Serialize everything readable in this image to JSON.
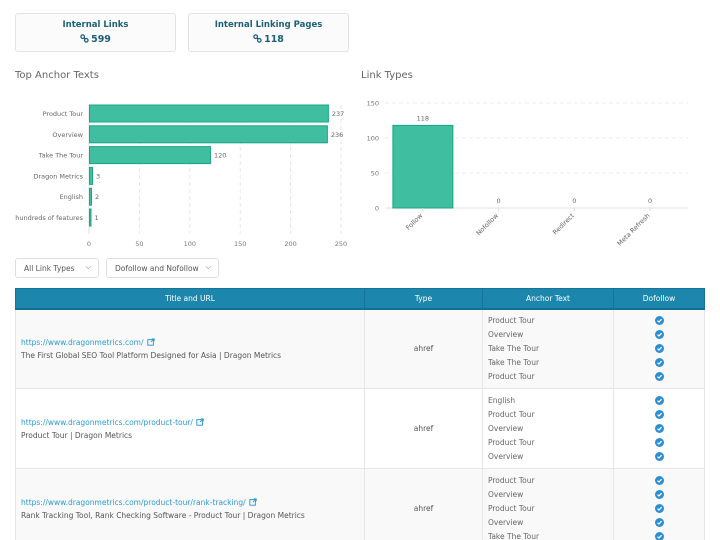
{
  "stats": [
    {
      "label": "Internal Links",
      "value": "599",
      "icon": "link-icon"
    },
    {
      "label": "Internal Linking Pages",
      "value": "118",
      "icon": "link-icon"
    }
  ],
  "colors": {
    "bar": "#3fbf9f",
    "bar_border": "#17a786",
    "header": "#1d86ac",
    "link": "#2d9ad6",
    "check": "#2c8fd6"
  },
  "chart_data": [
    {
      "type": "bar",
      "orientation": "horizontal",
      "title": "Top Anchor Texts",
      "categories": [
        "Product Tour",
        "Overview",
        "Take The Tour",
        "Dragon Metrics",
        "English",
        "hundreds of features"
      ],
      "values": [
        237,
        236,
        120,
        3,
        2,
        1
      ],
      "xlim": [
        0,
        250
      ],
      "xticks": [
        0,
        50,
        100,
        150,
        200,
        250
      ],
      "grid": true,
      "data_labels": true
    },
    {
      "type": "bar",
      "orientation": "vertical",
      "title": "Link Types",
      "categories": [
        "Follow",
        "Nofollow",
        "Redirect",
        "Meta Refresh"
      ],
      "values": [
        118,
        0,
        0,
        0
      ],
      "ylim": [
        0,
        150
      ],
      "yticks": [
        0,
        50,
        100,
        150
      ],
      "grid": true,
      "data_labels": true
    }
  ],
  "filters": {
    "link_type": {
      "selected": "All Link Types"
    },
    "follow": {
      "selected": "Dofollow and Nofollow"
    }
  },
  "table": {
    "headers": [
      "Title and URL",
      "Type",
      "Anchor Text",
      "Dofollow"
    ],
    "rows": [
      {
        "url": "https://www.dragonmetrics.com/",
        "title": "The First Global SEO Tool Platform Designed for Asia | Dragon Metrics",
        "type": "ahref",
        "anchors": [
          "Product Tour",
          "Overview",
          "Take The Tour",
          "Take The Tour",
          "Product Tour"
        ],
        "dofollow": [
          true,
          true,
          true,
          true,
          true
        ]
      },
      {
        "url": "https://www.dragonmetrics.com/product-tour/",
        "title": "Product Tour | Dragon Metrics",
        "type": "ahref",
        "anchors": [
          "English",
          "Product Tour",
          "Overview",
          "Product Tour",
          "Overview"
        ],
        "dofollow": [
          true,
          true,
          true,
          true,
          true
        ]
      },
      {
        "url": "https://www.dragonmetrics.com/product-tour/rank-tracking/",
        "title": "Rank Tracking Tool, Rank Checking Software - Product Tour | Dragon Metrics",
        "type": "ahref",
        "anchors": [
          "Product Tour",
          "Overview",
          "Product Tour",
          "Overview",
          "Take The Tour"
        ],
        "dofollow": [
          true,
          true,
          true,
          true,
          true
        ]
      }
    ]
  }
}
